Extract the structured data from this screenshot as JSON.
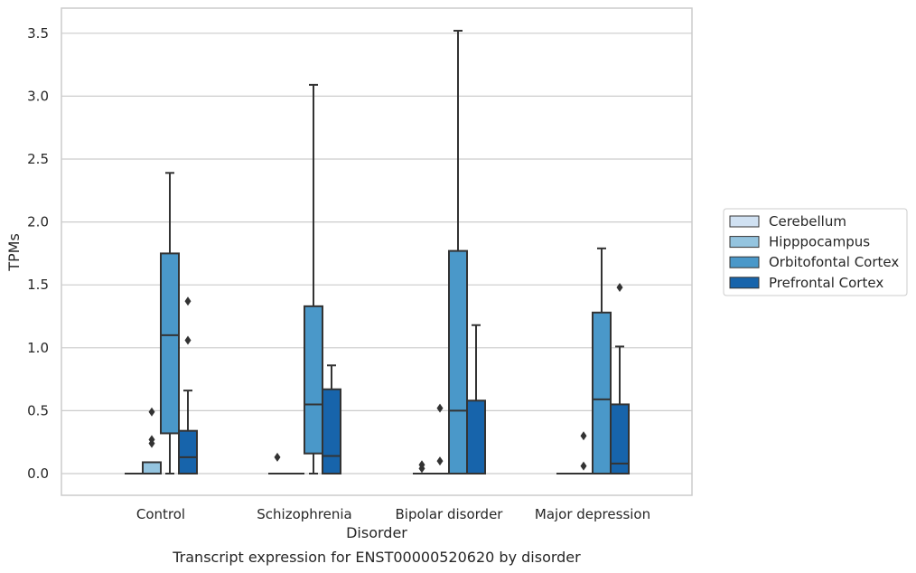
{
  "chart_data": {
    "type": "box",
    "caption": "Transcript expression for ENST00000520620 by disorder",
    "xlabel": "Disorder",
    "ylabel": "TPMs",
    "categories": [
      "Control",
      "Schizophrenia",
      "Bipolar disorder",
      "Major depression"
    ],
    "ylim": [
      -0.17,
      3.7
    ],
    "yticks": [
      0.0,
      0.5,
      1.0,
      1.5,
      2.0,
      2.5,
      3.0,
      3.5
    ],
    "ytick_labels": [
      "0.0",
      "0.5",
      "1.0",
      "1.5",
      "2.0",
      "2.5",
      "3.0",
      "3.5"
    ],
    "grid": true,
    "legend_position": "right",
    "series": [
      {
        "name": "Cerebellum",
        "color": "#d0e1f2",
        "boxes": [
          {
            "min": 0,
            "q1": 0,
            "median": 0,
            "q3": 0,
            "max": 0,
            "outliers": []
          },
          {
            "min": 0,
            "q1": 0,
            "median": 0,
            "q3": 0,
            "max": 0,
            "outliers": [
              0.13
            ]
          },
          {
            "min": 0,
            "q1": 0,
            "median": 0,
            "q3": 0,
            "max": 0,
            "outliers": [
              0.04,
              0.07
            ]
          },
          {
            "min": 0,
            "q1": 0,
            "median": 0,
            "q3": 0,
            "max": 0,
            "outliers": []
          }
        ]
      },
      {
        "name": "Hipppocampus",
        "color": "#94c4df",
        "boxes": [
          {
            "min": 0,
            "q1": 0,
            "median": 0,
            "q3": 0.09,
            "max": 0.09,
            "outliers": [
              0.24,
              0.27,
              0.49
            ]
          },
          {
            "min": 0,
            "q1": 0,
            "median": 0,
            "q3": 0,
            "max": 0,
            "outliers": []
          },
          {
            "min": 0,
            "q1": 0,
            "median": 0,
            "q3": 0,
            "max": 0,
            "outliers": [
              0.1,
              0.52
            ]
          },
          {
            "min": 0,
            "q1": 0,
            "median": 0,
            "q3": 0,
            "max": 0,
            "outliers": [
              0.06,
              0.3
            ]
          }
        ]
      },
      {
        "name": "Orbitofontal Cortex",
        "color": "#4a98c9",
        "boxes": [
          {
            "min": 0,
            "q1": 0.32,
            "median": 1.1,
            "q3": 1.75,
            "max": 2.39,
            "outliers": []
          },
          {
            "min": 0,
            "q1": 0.16,
            "median": 0.55,
            "q3": 1.33,
            "max": 3.09,
            "outliers": []
          },
          {
            "min": 0,
            "q1": 0,
            "median": 0.5,
            "q3": 1.77,
            "max": 3.52,
            "outliers": []
          },
          {
            "min": 0,
            "q1": 0,
            "median": 0.59,
            "q3": 1.28,
            "max": 1.79,
            "outliers": []
          }
        ]
      },
      {
        "name": "Prefrontal Cortex",
        "color": "#1764ab",
        "boxes": [
          {
            "min": 0,
            "q1": 0,
            "median": 0.13,
            "q3": 0.34,
            "max": 0.66,
            "outliers": [
              1.06,
              1.37
            ]
          },
          {
            "min": 0,
            "q1": 0,
            "median": 0.14,
            "q3": 0.67,
            "max": 0.86,
            "outliers": []
          },
          {
            "min": 0,
            "q1": 0,
            "median": 0,
            "q3": 0.58,
            "max": 1.18,
            "outliers": []
          },
          {
            "min": 0,
            "q1": 0,
            "median": 0.08,
            "q3": 0.55,
            "max": 1.01,
            "outliers": [
              1.48
            ]
          }
        ]
      }
    ]
  }
}
